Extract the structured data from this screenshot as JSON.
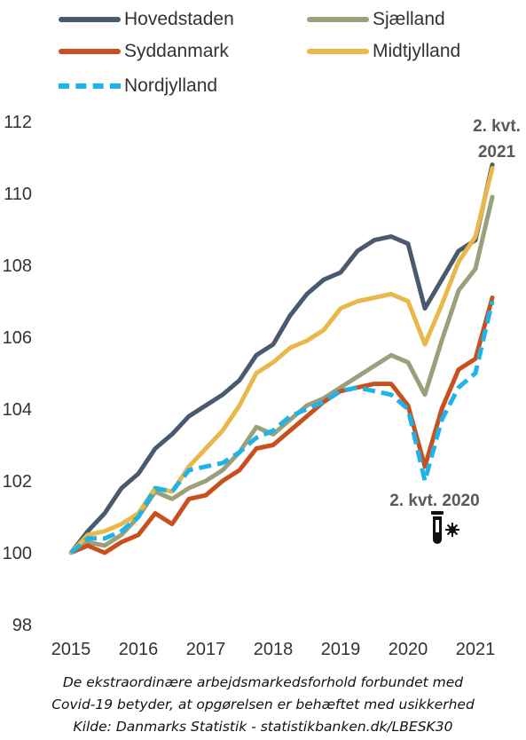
{
  "chart_data": {
    "type": "line",
    "x": [
      "2015 K1",
      "2015 K2",
      "2015 K3",
      "2015 K4",
      "2016 K1",
      "2016 K2",
      "2016 K3",
      "2016 K4",
      "2017 K1",
      "2017 K2",
      "2017 K3",
      "2017 K4",
      "2018 K1",
      "2018 K2",
      "2018 K3",
      "2018 K4",
      "2019 K1",
      "2019 K2",
      "2019 K3",
      "2019 K4",
      "2020 K1",
      "2020 K2",
      "2020 K3",
      "2020 K4",
      "2021 K1",
      "2021 K2"
    ],
    "xticks": [
      "2015",
      "2016",
      "2017",
      "2018",
      "2019",
      "2020",
      "2021"
    ],
    "ylim": [
      98,
      112
    ],
    "yticks": [
      "98",
      "100",
      "102",
      "104",
      "106",
      "108",
      "110",
      "112"
    ],
    "series": [
      {
        "name": "Hovedstaden",
        "color": "#4a5a6e",
        "dashed": false,
        "values": [
          100.0,
          100.6,
          101.1,
          101.8,
          102.2,
          102.9,
          103.3,
          103.8,
          104.1,
          104.4,
          104.8,
          105.5,
          105.8,
          106.6,
          107.2,
          107.6,
          107.8,
          108.4,
          108.7,
          108.8,
          108.6,
          106.8,
          107.6,
          108.4,
          108.7,
          110.8
        ]
      },
      {
        "name": "Sjælland",
        "color": "#9aa07a",
        "dashed": false,
        "values": [
          100.0,
          100.3,
          100.2,
          100.5,
          101.0,
          101.7,
          101.5,
          101.8,
          102.0,
          102.3,
          102.8,
          103.5,
          103.3,
          103.7,
          104.1,
          104.3,
          104.6,
          104.9,
          105.2,
          105.5,
          105.3,
          104.4,
          105.9,
          107.3,
          107.9,
          109.9
        ]
      },
      {
        "name": "Syddanmark",
        "color": "#c8501e",
        "dashed": false,
        "values": [
          100.0,
          100.2,
          100.0,
          100.3,
          100.5,
          101.1,
          100.8,
          101.5,
          101.6,
          102.0,
          102.3,
          102.9,
          103.0,
          103.4,
          103.8,
          104.2,
          104.5,
          104.6,
          104.7,
          104.7,
          104.1,
          102.4,
          104.0,
          105.1,
          105.4,
          107.1
        ]
      },
      {
        "name": "Midtjylland",
        "color": "#e8b84a",
        "dashed": false,
        "values": [
          100.0,
          100.5,
          100.6,
          100.8,
          101.1,
          101.8,
          101.7,
          102.4,
          102.9,
          103.4,
          104.1,
          105.0,
          105.3,
          105.7,
          105.9,
          106.2,
          106.8,
          107.0,
          107.1,
          107.2,
          107.0,
          105.8,
          106.9,
          108.1,
          108.8,
          110.7
        ]
      },
      {
        "name": "Nordjylland",
        "color": "#1fb3e8",
        "dashed": true,
        "values": [
          100.0,
          100.4,
          100.4,
          100.6,
          101.0,
          101.8,
          101.7,
          102.3,
          102.4,
          102.5,
          102.8,
          103.2,
          103.4,
          103.8,
          104.0,
          104.2,
          104.5,
          104.6,
          104.5,
          104.4,
          104.0,
          102.0,
          103.7,
          104.6,
          105.0,
          107.0
        ]
      }
    ],
    "annotations": [
      {
        "text": "2. kvt.",
        "text2": "2021"
      },
      {
        "text": "2. kvt. 2020"
      }
    ]
  },
  "icons": {
    "virus_test": "test-tube-virus-icon"
  },
  "footnotes": {
    "line1": "De ekstraordinære arbejdsmarkedsforhold forbundet med",
    "line2": "Covid-19 betyder, at opgørelsen er behæftet med usikkerhed",
    "source": "Kilde: Danmarks Statistik - statistikbanken.dk/LBESK30"
  }
}
